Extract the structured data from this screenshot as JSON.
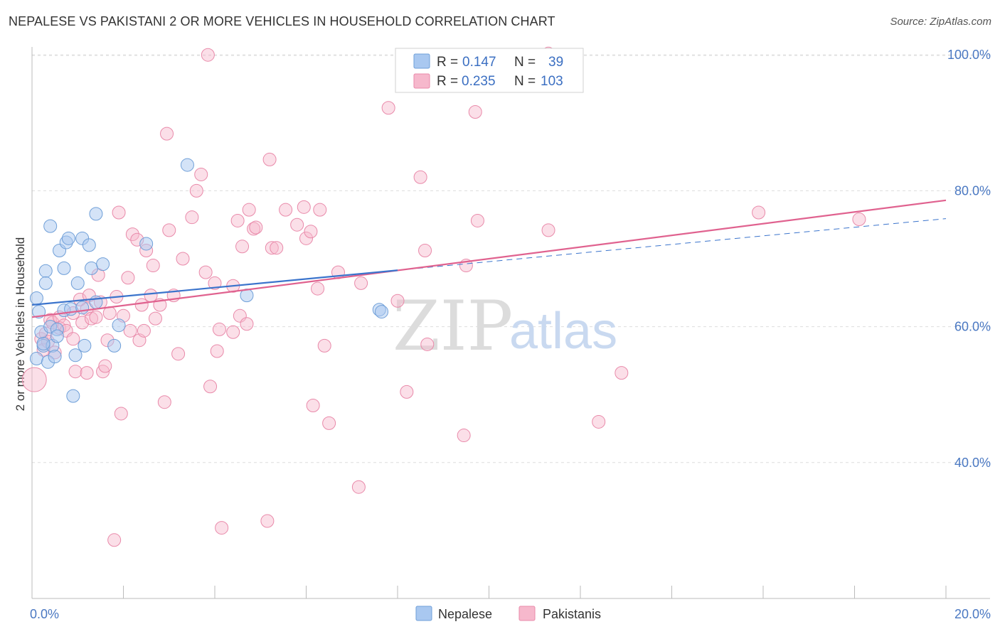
{
  "title": "NEPALESE VS PAKISTANI 2 OR MORE VEHICLES IN HOUSEHOLD CORRELATION CHART",
  "source": "Source: ZipAtlas.com",
  "watermark": {
    "zip": "ZIP",
    "atlas": "atlas"
  },
  "colors": {
    "nepalese_fill": "#a9c8f0",
    "nepalese_stroke": "#6f9fd8",
    "nepalese_line": "#3b74cc",
    "pakistani_fill": "#f6b8cc",
    "pakistani_stroke": "#e98aaa",
    "pakistani_line": "#e0628f",
    "tick_text": "#4a78c2",
    "grid": "#dddddd"
  },
  "legend": {
    "rows": [
      {
        "r_label": "R =",
        "r_value": "0.147",
        "n_label": "N =",
        "n_value": "39"
      },
      {
        "r_label": "R =",
        "r_value": "0.235",
        "n_label": "N =",
        "n_value": "103"
      }
    ]
  },
  "bottom_legend": [
    "Nepalese",
    "Pakistanis"
  ],
  "chart_data": {
    "type": "scatter",
    "title": "NEPALESE VS PAKISTANI 2 OR MORE VEHICLES IN HOUSEHOLD CORRELATION CHART",
    "xlabel": "",
    "ylabel": "2 or more Vehicles in Household",
    "xlim": [
      0,
      20
    ],
    "ylim": [
      20,
      102
    ],
    "x_tick_labels": [
      "0.0%",
      "20.0%"
    ],
    "y_ticks": [
      40,
      60,
      80,
      100
    ],
    "y_tick_labels": [
      "40.0%",
      "60.0%",
      "80.0%",
      "100.0%"
    ],
    "series": [
      {
        "name": "Nepalese",
        "R": 0.147,
        "N": 39,
        "trend": {
          "x0": 0,
          "y0": 63.2,
          "x1": 8.0,
          "y1": 68.3,
          "dashed_to_x": 20,
          "dashed_to_y": 75.9
        },
        "points": [
          [
            0.1,
            64.2
          ],
          [
            0.15,
            62.2
          ],
          [
            0.1,
            55.3
          ],
          [
            0.2,
            59.2
          ],
          [
            0.25,
            57.2
          ],
          [
            0.3,
            68.2
          ],
          [
            0.3,
            66.4
          ],
          [
            0.35,
            54.8
          ],
          [
            0.4,
            60.0
          ],
          [
            0.4,
            74.8
          ],
          [
            0.45,
            57.2
          ],
          [
            0.5,
            55.6
          ],
          [
            0.55,
            59.6
          ],
          [
            0.55,
            58.6
          ],
          [
            0.6,
            71.2
          ],
          [
            0.7,
            68.6
          ],
          [
            0.7,
            62.4
          ],
          [
            0.75,
            72.4
          ],
          [
            0.8,
            73.0
          ],
          [
            0.85,
            62.6
          ],
          [
            0.9,
            49.8
          ],
          [
            0.95,
            55.8
          ],
          [
            1.0,
            66.4
          ],
          [
            1.1,
            73.0
          ],
          [
            1.1,
            62.8
          ],
          [
            1.15,
            57.2
          ],
          [
            1.25,
            72.0
          ],
          [
            1.3,
            68.6
          ],
          [
            1.4,
            76.6
          ],
          [
            1.4,
            63.6
          ],
          [
            1.55,
            69.2
          ],
          [
            1.8,
            57.2
          ],
          [
            1.9,
            60.2
          ],
          [
            2.5,
            72.2
          ],
          [
            3.4,
            83.8
          ],
          [
            4.7,
            64.6
          ],
          [
            7.6,
            62.5
          ],
          [
            7.65,
            62.2
          ],
          [
            0.25,
            57.5
          ]
        ]
      },
      {
        "name": "Pakistanis",
        "R": 0.235,
        "N": 103,
        "trend": {
          "x0": 0,
          "y0": 61.4,
          "x1": 20,
          "y1": 78.6
        },
        "points": [
          [
            0.05,
            52.2
          ],
          [
            0.2,
            58.2
          ],
          [
            0.25,
            56.6
          ],
          [
            0.3,
            59.0
          ],
          [
            0.35,
            57.8
          ],
          [
            0.4,
            61.0
          ],
          [
            0.45,
            60.6
          ],
          [
            0.5,
            56.2
          ],
          [
            0.6,
            61.4
          ],
          [
            0.6,
            59.8
          ],
          [
            0.7,
            60.2
          ],
          [
            0.75,
            59.4
          ],
          [
            0.9,
            58.2
          ],
          [
            0.9,
            62.0
          ],
          [
            0.95,
            53.4
          ],
          [
            1.05,
            64.0
          ],
          [
            1.1,
            60.6
          ],
          [
            1.2,
            53.2
          ],
          [
            1.2,
            62.6
          ],
          [
            1.25,
            64.6
          ],
          [
            1.3,
            61.2
          ],
          [
            1.4,
            61.4
          ],
          [
            1.45,
            67.6
          ],
          [
            1.5,
            63.6
          ],
          [
            1.55,
            53.4
          ],
          [
            1.6,
            54.2
          ],
          [
            1.65,
            58.0
          ],
          [
            1.7,
            62.0
          ],
          [
            1.8,
            28.6
          ],
          [
            1.85,
            64.4
          ],
          [
            1.9,
            76.8
          ],
          [
            1.95,
            47.2
          ],
          [
            2.0,
            61.6
          ],
          [
            2.1,
            67.2
          ],
          [
            2.15,
            59.4
          ],
          [
            2.2,
            73.6
          ],
          [
            2.3,
            72.8
          ],
          [
            2.35,
            58.0
          ],
          [
            2.4,
            63.2
          ],
          [
            2.45,
            59.4
          ],
          [
            2.5,
            71.2
          ],
          [
            2.6,
            64.6
          ],
          [
            2.65,
            69.0
          ],
          [
            2.7,
            61.2
          ],
          [
            2.8,
            63.2
          ],
          [
            2.9,
            48.9
          ],
          [
            2.95,
            88.4
          ],
          [
            3.0,
            74.2
          ],
          [
            3.1,
            64.6
          ],
          [
            3.2,
            56.0
          ],
          [
            3.3,
            70.0
          ],
          [
            3.5,
            76.1
          ],
          [
            3.6,
            80.0
          ],
          [
            3.7,
            82.4
          ],
          [
            3.8,
            68.0
          ],
          [
            3.85,
            100.0
          ],
          [
            3.9,
            51.2
          ],
          [
            4.0,
            66.4
          ],
          [
            4.05,
            56.4
          ],
          [
            4.1,
            59.6
          ],
          [
            4.15,
            30.4
          ],
          [
            4.4,
            59.2
          ],
          [
            4.5,
            75.6
          ],
          [
            4.55,
            61.6
          ],
          [
            4.6,
            71.8
          ],
          [
            4.7,
            60.4
          ],
          [
            4.75,
            77.2
          ],
          [
            4.85,
            74.4
          ],
          [
            4.9,
            74.6
          ],
          [
            5.15,
            31.4
          ],
          [
            5.2,
            84.6
          ],
          [
            5.25,
            71.6
          ],
          [
            5.35,
            71.6
          ],
          [
            5.55,
            77.2
          ],
          [
            5.8,
            75.0
          ],
          [
            5.95,
            77.6
          ],
          [
            6.0,
            73.0
          ],
          [
            6.1,
            74.0
          ],
          [
            6.15,
            48.4
          ],
          [
            6.25,
            65.6
          ],
          [
            6.3,
            77.2
          ],
          [
            6.4,
            57.2
          ],
          [
            6.5,
            45.8
          ],
          [
            6.7,
            68.0
          ],
          [
            7.15,
            36.4
          ],
          [
            7.2,
            66.4
          ],
          [
            7.8,
            92.2
          ],
          [
            8.0,
            63.8
          ],
          [
            8.2,
            50.4
          ],
          [
            8.5,
            82.0
          ],
          [
            8.6,
            71.2
          ],
          [
            8.65,
            57.4
          ],
          [
            9.45,
            44.0
          ],
          [
            9.5,
            69.0
          ],
          [
            9.7,
            91.6
          ],
          [
            9.75,
            75.6
          ],
          [
            11.3,
            74.2
          ],
          [
            12.4,
            46.0
          ],
          [
            12.9,
            53.2
          ],
          [
            15.9,
            76.8
          ],
          [
            18.1,
            75.8
          ],
          [
            11.3,
            100.2
          ],
          [
            4.4,
            66.0
          ]
        ]
      }
    ]
  }
}
